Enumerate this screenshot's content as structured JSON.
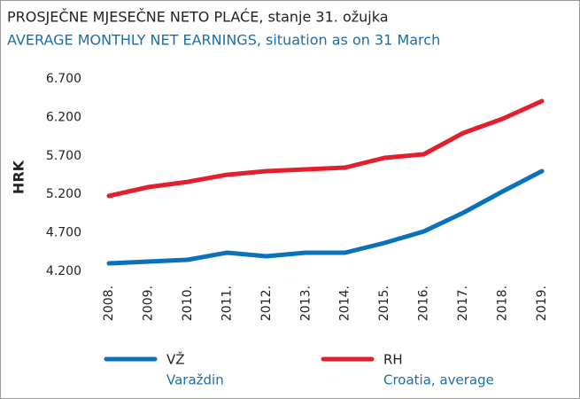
{
  "chart_data": {
    "type": "line",
    "title": "PROSJEČNE MJESEČNE NETO PLAĆE, stanje 31. ožujka",
    "subtitle": "AVERAGE MONTHLY NET EARNINGS, situation as on 31 March",
    "y_label": "HRK",
    "categories": [
      "2008.",
      "2009.",
      "2010.",
      "2011.",
      "2012.",
      "2013.",
      "2014.",
      "2015.",
      "2016.",
      "2017.",
      "2018.",
      "2019."
    ],
    "series": [
      {
        "name": "VŽ",
        "description": "Varaždin",
        "color": "#0a72bb",
        "values": [
          4304,
          4327,
          4350,
          4442,
          4396,
          4442,
          4442,
          4569,
          4718,
          4960,
          5237,
          5502
        ]
      },
      {
        "name": "RH",
        "description": "Croatia, average",
        "color": "#e31e2d",
        "values": [
          5179,
          5294,
          5363,
          5455,
          5502,
          5525,
          5548,
          5675,
          5721,
          5997,
          6181,
          6412
        ]
      }
    ],
    "ylim": [
      4200,
      6700
    ],
    "yticks": [
      {
        "value": 4200,
        "label": "4.200"
      },
      {
        "value": 4700,
        "label": "4.700"
      },
      {
        "value": 5200,
        "label": "5.200"
      },
      {
        "value": 5700,
        "label": "5.700"
      },
      {
        "value": 6200,
        "label": "6.200"
      },
      {
        "value": 6700,
        "label": "6.700"
      }
    ],
    "grid": false
  }
}
